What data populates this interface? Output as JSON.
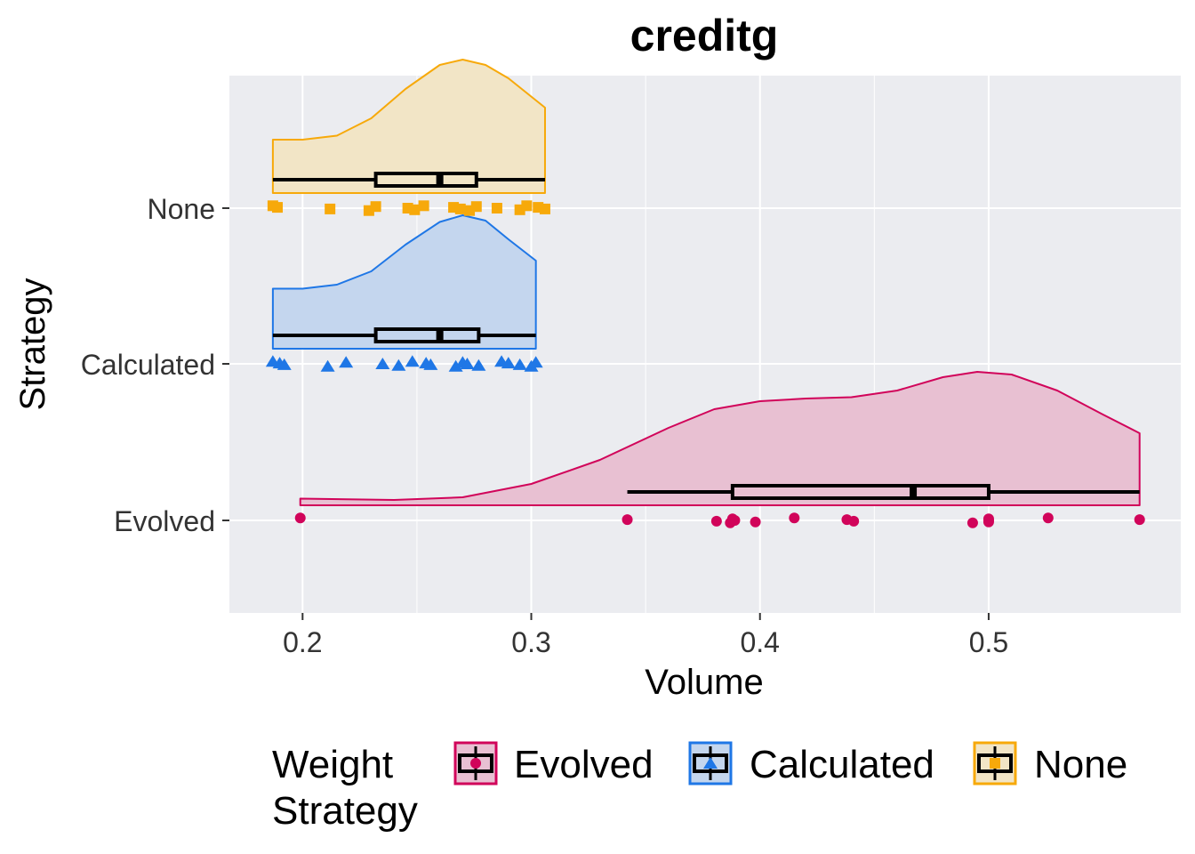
{
  "chart_data": {
    "type": "raincloud",
    "title": "creditg",
    "xlabel": "Volume",
    "ylabel": "Strategy",
    "xlim": [
      0.168,
      0.584
    ],
    "x_ticks": [
      0.2,
      0.3,
      0.4,
      0.5
    ],
    "x_tick_labels": [
      "0.2",
      "0.3",
      "0.4",
      "0.5"
    ],
    "categories": [
      "Evolved",
      "Calculated",
      "None"
    ],
    "grid": true,
    "legend": {
      "title_lines": [
        "Weight",
        "Strategy"
      ],
      "placement": "bottom",
      "items": [
        "Evolved",
        "Calculated",
        "None"
      ]
    },
    "series": [
      {
        "name": "Evolved",
        "color": "#D1045A",
        "fill": "#E8C0D2",
        "marker": "circle",
        "box": {
          "whisker_low": 0.342,
          "q1": 0.388,
          "median": 0.467,
          "q3": 0.5,
          "whisker_high": 0.566
        },
        "points": [
          0.199,
          0.342,
          0.381,
          0.387,
          0.388,
          0.389,
          0.398,
          0.415,
          0.438,
          0.441,
          0.493,
          0.5,
          0.5,
          0.5,
          0.526,
          0.566
        ],
        "density": [
          [
            0.199,
            0.05
          ],
          [
            0.24,
            0.04
          ],
          [
            0.27,
            0.06
          ],
          [
            0.3,
            0.16
          ],
          [
            0.33,
            0.34
          ],
          [
            0.36,
            0.58
          ],
          [
            0.38,
            0.72
          ],
          [
            0.4,
            0.78
          ],
          [
            0.42,
            0.8
          ],
          [
            0.44,
            0.81
          ],
          [
            0.46,
            0.86
          ],
          [
            0.48,
            0.96
          ],
          [
            0.495,
            1.0
          ],
          [
            0.51,
            0.98
          ],
          [
            0.53,
            0.86
          ],
          [
            0.55,
            0.68
          ],
          [
            0.566,
            0.54
          ]
        ]
      },
      {
        "name": "Calculated",
        "color": "#1F77E6",
        "fill": "#C4D6EE",
        "marker": "triangle",
        "box": {
          "whisker_low": 0.187,
          "q1": 0.232,
          "median": 0.26,
          "q3": 0.277,
          "whisker_high": 0.302
        },
        "points": [
          0.187,
          0.19,
          0.192,
          0.211,
          0.219,
          0.235,
          0.242,
          0.248,
          0.254,
          0.256,
          0.267,
          0.27,
          0.272,
          0.277,
          0.287,
          0.29,
          0.295,
          0.3,
          0.302
        ],
        "density": [
          [
            0.187,
            0.45
          ],
          [
            0.2,
            0.45
          ],
          [
            0.215,
            0.48
          ],
          [
            0.23,
            0.58
          ],
          [
            0.245,
            0.78
          ],
          [
            0.26,
            0.95
          ],
          [
            0.27,
            1.0
          ],
          [
            0.28,
            0.96
          ],
          [
            0.29,
            0.82
          ],
          [
            0.302,
            0.66
          ]
        ]
      },
      {
        "name": "None",
        "color": "#F7A90A",
        "fill": "#F2E5C6",
        "marker": "square",
        "box": {
          "whisker_low": 0.187,
          "q1": 0.232,
          "median": 0.26,
          "q3": 0.276,
          "whisker_high": 0.306
        },
        "points": [
          0.187,
          0.189,
          0.212,
          0.229,
          0.232,
          0.246,
          0.249,
          0.253,
          0.266,
          0.269,
          0.273,
          0.276,
          0.285,
          0.295,
          0.298,
          0.303,
          0.306
        ],
        "density": [
          [
            0.187,
            0.4
          ],
          [
            0.2,
            0.4
          ],
          [
            0.215,
            0.43
          ],
          [
            0.23,
            0.56
          ],
          [
            0.245,
            0.78
          ],
          [
            0.26,
            0.96
          ],
          [
            0.27,
            1.0
          ],
          [
            0.28,
            0.96
          ],
          [
            0.29,
            0.86
          ],
          [
            0.306,
            0.64
          ]
        ]
      }
    ]
  }
}
